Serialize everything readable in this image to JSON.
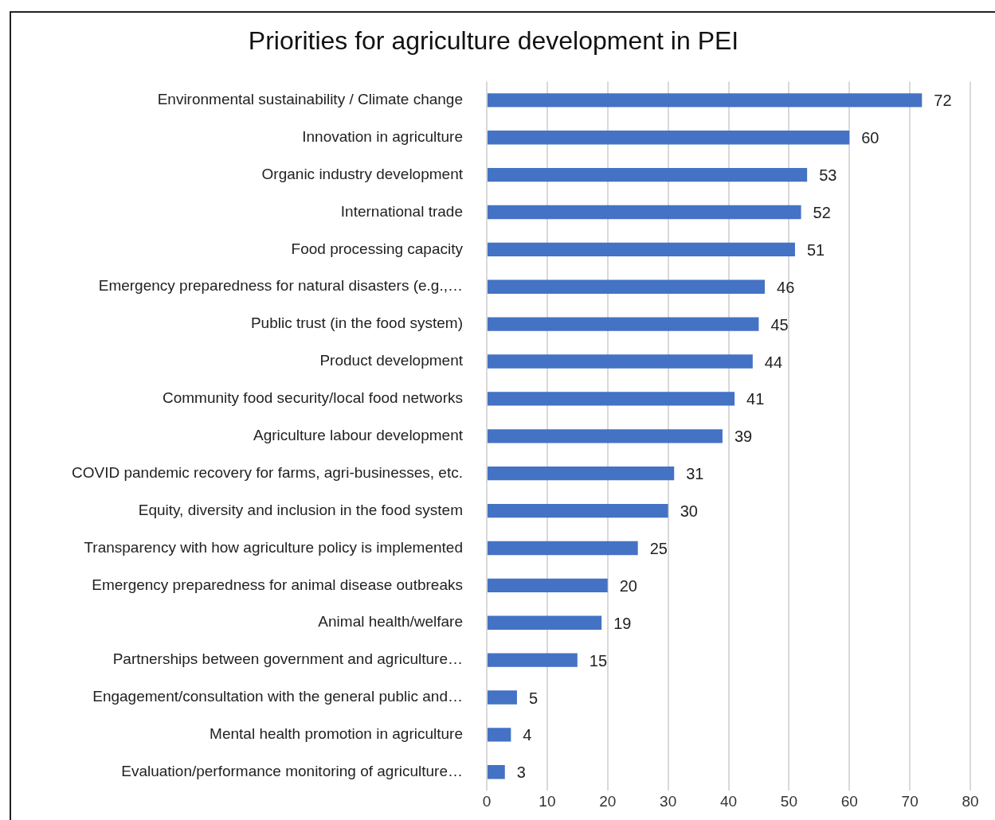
{
  "chart_data": {
    "type": "bar",
    "orientation": "horizontal",
    "title": "Priorities for agriculture development in PEI",
    "categories": [
      "Environmental sustainability / Climate change",
      "Innovation in agriculture",
      "Organic industry development",
      "International trade",
      "Food processing capacity",
      "Emergency preparedness for natural disasters (e.g.,…",
      "Public trust (in the food system)",
      "Product development",
      "Community food security/local food networks",
      "Agriculture labour development",
      "COVID pandemic recovery for farms, agri-businesses, etc.",
      "Equity, diversity and inclusion in the food system",
      "Transparency with how agriculture policy is implemented",
      "Emergency preparedness for animal disease outbreaks",
      "Animal health/welfare",
      "Partnerships between government and agriculture…",
      "Engagement/consultation with the general public and…",
      "Mental health promotion in agriculture",
      "Evaluation/performance monitoring of agriculture…"
    ],
    "values": [
      72,
      60,
      53,
      52,
      51,
      46,
      45,
      44,
      41,
      39,
      31,
      30,
      25,
      20,
      19,
      15,
      5,
      4,
      3
    ],
    "color": "#4472c4",
    "xlim": [
      0,
      80
    ],
    "xticks": [
      0,
      10,
      20,
      30,
      40,
      50,
      60,
      70,
      80
    ],
    "grid": "x",
    "data_labels": true,
    "legend": false
  }
}
